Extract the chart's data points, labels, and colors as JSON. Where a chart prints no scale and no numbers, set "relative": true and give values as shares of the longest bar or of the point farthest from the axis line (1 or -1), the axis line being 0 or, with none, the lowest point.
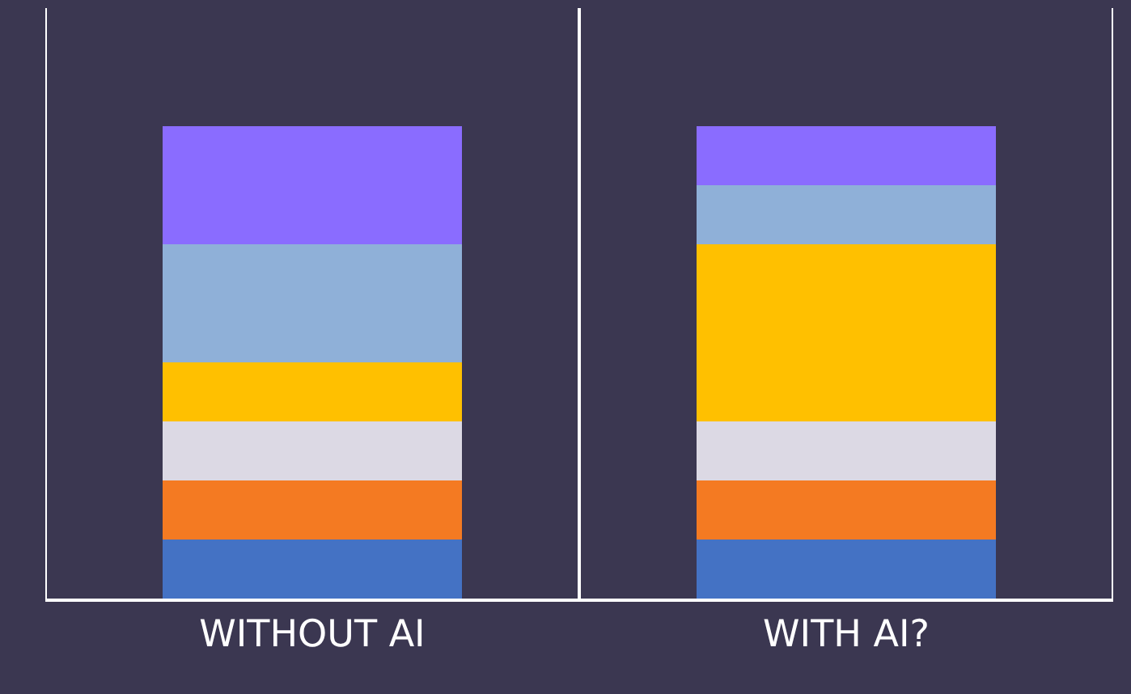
{
  "chart_data": {
    "type": "bar",
    "stacked": true,
    "relative": true,
    "grid": "x",
    "categories": [
      "WITHOUT AI",
      "WITH AI?"
    ],
    "series": [
      {
        "color": "#4472c4",
        "values": [
          0.125,
          0.125
        ]
      },
      {
        "color": "#f47a22",
        "values": [
          0.125,
          0.125
        ]
      },
      {
        "color": "#dcd9e4",
        "values": [
          0.125,
          0.125
        ]
      },
      {
        "color": "#ffc000",
        "values": [
          0.125,
          0.375
        ]
      },
      {
        "color": "#8fb0d8",
        "values": [
          0.25,
          0.125
        ]
      },
      {
        "color": "#8a6cff",
        "values": [
          0.25,
          0.125
        ]
      }
    ]
  }
}
